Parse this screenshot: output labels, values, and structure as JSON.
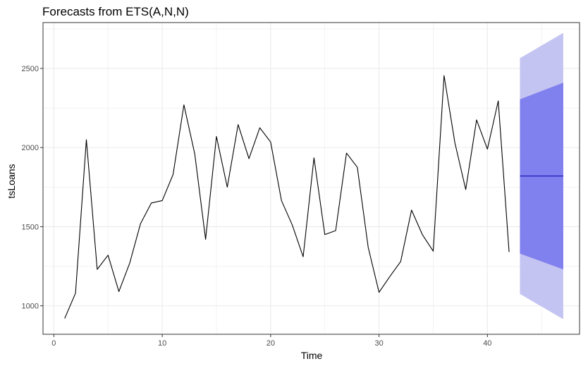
{
  "chart_data": {
    "type": "line",
    "title": "Forecasts from ETS(A,N,N)",
    "xlabel": "Time",
    "ylabel": "tsLoans",
    "xlim": [
      -1.0,
      48.5
    ],
    "ylim": [
      820,
      2790
    ],
    "x_ticks": [
      0,
      10,
      20,
      30,
      40
    ],
    "y_ticks": [
      1000,
      1500,
      2000,
      2500
    ],
    "x_tick_labels": [
      "0",
      "10",
      "20",
      "30",
      "40"
    ],
    "y_tick_labels": [
      "1000",
      "1500",
      "2000",
      "2500"
    ],
    "grid": true,
    "legend": "none",
    "series": [
      {
        "x": [
          1,
          2,
          3,
          4,
          5,
          6,
          7,
          8,
          9,
          10,
          11,
          12,
          13,
          14,
          15,
          16,
          17,
          18,
          19,
          20,
          21,
          22,
          23,
          24,
          25,
          26,
          27,
          28,
          29,
          30,
          31,
          32,
          33,
          34,
          35,
          36,
          37,
          38,
          39,
          40,
          41,
          42
        ],
        "values": [
          920,
          1080,
          2050,
          1230,
          1320,
          1090,
          1270,
          1520,
          1650,
          1665,
          1830,
          2270,
          1960,
          1420,
          2070,
          1750,
          2145,
          1930,
          2125,
          2035,
          1665,
          1510,
          1310,
          1935,
          1450,
          1475,
          1965,
          1875,
          1370,
          1085,
          1185,
          1280,
          1605,
          1450,
          1345,
          2455,
          2030,
          1735,
          2175,
          1990,
          2295,
          1340
        ]
      },
      {
        "x": [
          43,
          47
        ],
        "values": [
          1820,
          1820
        ]
      }
    ],
    "intervals": [
      {
        "level": 95,
        "lower": [
          1075,
          915
        ],
        "upper": [
          2565,
          2725
        ]
      },
      {
        "level": 80,
        "lower": [
          1330,
          1230
        ],
        "upper": [
          2305,
          2410
        ]
      }
    ],
    "colors": {
      "history_line": "#000000",
      "forecast_line": "#0000aa",
      "band_95": "#c4c4f2",
      "band_80": "#8080ee",
      "grid": "#ebebeb",
      "panel_border": "#333333",
      "tick_label": "#4d4d4d"
    }
  }
}
